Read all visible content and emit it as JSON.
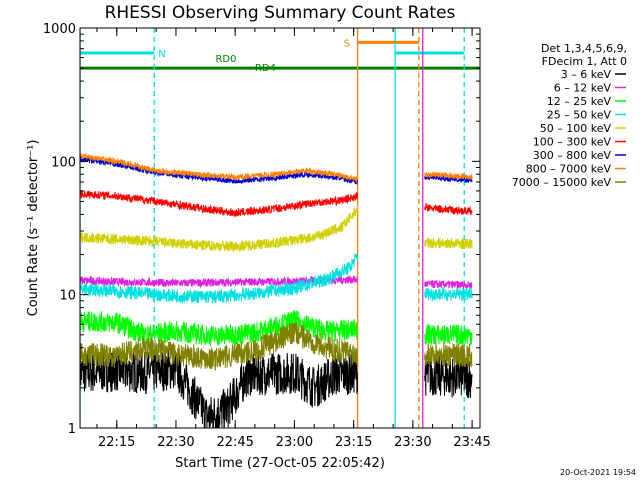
{
  "chart_data": {
    "type": "line",
    "title": "RHESSI Observing Summary Count Rates",
    "xlabel": "Start Time (27-Oct-05 22:05:42)",
    "ylabel": "Count Rate (s⁻¹ detector⁻¹)",
    "yscale": "log",
    "ylim": [
      1,
      1000
    ],
    "xlim": [
      "22:05:42",
      "23:47:00"
    ],
    "x_ticks": [
      "22:15",
      "22:30",
      "22:45",
      "23:00",
      "23:15",
      "23:30",
      "23:45"
    ],
    "y_ticks": [
      "1",
      "10",
      "100",
      "1000"
    ],
    "legend": {
      "position": "top-right",
      "header": [
        "Det 1,3,4,5,6,9,",
        "FDecim 1, Att 0"
      ]
    },
    "series": [
      {
        "name": "3 – 6 keV",
        "color": "#000000",
        "points": [
          [
            "22:05:42",
            2.6
          ],
          [
            "22:15",
            2.7
          ],
          [
            "22:22",
            2.6
          ],
          [
            "22:30",
            2.8
          ],
          [
            "22:38",
            1.2
          ],
          [
            "22:43",
            1.4
          ],
          [
            "22:48",
            2.5
          ],
          [
            "23:00",
            2.6
          ],
          [
            "23:05",
            2.0
          ],
          [
            "23:10",
            2.5
          ],
          [
            "23:16",
            2.6
          ]
        ],
        "segment2": [
          [
            "23:33",
            2.5
          ],
          [
            "23:45",
            2.4
          ]
        ]
      },
      {
        "name": "6 – 12 keV",
        "color": "#e020e0",
        "points": [
          [
            "22:05:42",
            12.8
          ],
          [
            "22:15",
            12.5
          ],
          [
            "22:30",
            12.2
          ],
          [
            "22:45",
            12.4
          ],
          [
            "23:00",
            12.6
          ],
          [
            "23:16",
            13.0
          ]
        ],
        "segment2": [
          [
            "23:33",
            12.0
          ],
          [
            "23:45",
            11.8
          ]
        ]
      },
      {
        "name": "12 – 25 keV",
        "color": "#00ff00",
        "points": [
          [
            "22:05:42",
            6.3
          ],
          [
            "22:15",
            6.2
          ],
          [
            "22:22",
            5.0
          ],
          [
            "22:30",
            5.3
          ],
          [
            "22:40",
            4.9
          ],
          [
            "22:50",
            5.2
          ],
          [
            "23:00",
            6.4
          ],
          [
            "23:08",
            5.3
          ],
          [
            "23:16",
            5.5
          ]
        ],
        "segment2": [
          [
            "23:33",
            5.0
          ],
          [
            "23:45",
            5.0
          ]
        ]
      },
      {
        "name": "25 – 50 keV",
        "color": "#00e0e0",
        "points": [
          [
            "22:05:42",
            11.0
          ],
          [
            "22:15",
            10.6
          ],
          [
            "22:25",
            10.0
          ],
          [
            "22:30",
            9.8
          ],
          [
            "22:40",
            9.6
          ],
          [
            "22:50",
            10.2
          ],
          [
            "23:00",
            11.2
          ],
          [
            "23:08",
            13.0
          ],
          [
            "23:14",
            16.0
          ],
          [
            "23:16",
            19.5
          ]
        ],
        "segment2": [
          [
            "23:33",
            10.2
          ],
          [
            "23:45",
            10.0
          ]
        ]
      },
      {
        "name": "50 – 100 keV",
        "color": "#d0d000",
        "points": [
          [
            "22:05:42",
            27.0
          ],
          [
            "22:15",
            26.0
          ],
          [
            "22:25",
            25.0
          ],
          [
            "22:35",
            23.5
          ],
          [
            "22:45",
            23.0
          ],
          [
            "22:55",
            24.5
          ],
          [
            "23:05",
            27.0
          ],
          [
            "23:12",
            32.0
          ],
          [
            "23:16",
            44.0
          ]
        ],
        "segment2": [
          [
            "23:33",
            24.5
          ],
          [
            "23:45",
            24.0
          ]
        ]
      },
      {
        "name": "100 – 300 keV",
        "color": "#ff0000",
        "points": [
          [
            "22:05:42",
            57.0
          ],
          [
            "22:15",
            55.0
          ],
          [
            "22:25",
            50.0
          ],
          [
            "22:35",
            45.0
          ],
          [
            "22:45",
            41.0
          ],
          [
            "22:55",
            44.0
          ],
          [
            "23:05",
            49.0
          ],
          [
            "23:12",
            51.0
          ],
          [
            "23:16",
            55.0
          ]
        ],
        "segment2": [
          [
            "23:33",
            45.0
          ],
          [
            "23:45",
            42.0
          ]
        ]
      },
      {
        "name": "300 – 800 keV",
        "color": "#0000d0",
        "points": [
          [
            "22:05:42",
            104.0
          ],
          [
            "22:15",
            95.0
          ],
          [
            "22:25",
            82.0
          ],
          [
            "22:35",
            76.0
          ],
          [
            "22:45",
            71.0
          ],
          [
            "22:55",
            75.0
          ],
          [
            "23:03",
            80.0
          ],
          [
            "23:10",
            76.0
          ],
          [
            "23:16",
            70.0
          ]
        ],
        "segment2": [
          [
            "23:33",
            76.0
          ],
          [
            "23:45",
            72.0
          ]
        ]
      },
      {
        "name": "800 – 7000 keV",
        "color": "#ff8000",
        "points": [
          [
            "22:05:42",
            110.0
          ],
          [
            "22:15",
            100.0
          ],
          [
            "22:25",
            85.0
          ],
          [
            "22:35",
            80.0
          ],
          [
            "22:45",
            76.0
          ],
          [
            "22:55",
            80.0
          ],
          [
            "23:03",
            85.0
          ],
          [
            "23:10",
            80.0
          ],
          [
            "23:16",
            73.0
          ]
        ],
        "segment2": [
          [
            "23:33",
            80.0
          ],
          [
            "23:45",
            76.0
          ]
        ]
      },
      {
        "name": "7000 – 15000 keV",
        "color": "#808000",
        "points": [
          [
            "22:05:42",
            3.6
          ],
          [
            "22:15",
            3.5
          ],
          [
            "22:22",
            4.0
          ],
          [
            "22:30",
            3.6
          ],
          [
            "22:40",
            3.3
          ],
          [
            "22:50",
            3.8
          ],
          [
            "23:00",
            5.2
          ],
          [
            "23:08",
            4.0
          ],
          [
            "23:16",
            3.6
          ]
        ],
        "segment2": [
          [
            "23:33",
            3.6
          ],
          [
            "23:45",
            3.5
          ]
        ]
      }
    ],
    "intervals": [
      {
        "label": "N",
        "color": "#00e0e0",
        "level": 650,
        "ranges": [
          [
            "22:05:42",
            "22:24:30"
          ],
          [
            "23:25:30",
            "23:43:00"
          ]
        ]
      },
      {
        "label": "S",
        "color": "#ff8000",
        "level": 780,
        "ranges": [
          [
            "23:16:00",
            "23:31:30"
          ]
        ]
      },
      {
        "label": "RD0",
        "color": "#008000",
        "level": 500,
        "ranges": [
          [
            "22:05:42",
            "23:47:00"
          ]
        ]
      },
      {
        "label": "RD4",
        "color": "#008000",
        "level": 500,
        "ranges": []
      }
    ],
    "markers": [
      {
        "time": "22:05:42",
        "color": "#00e0e0",
        "style": "solid"
      },
      {
        "time": "22:24:30",
        "color": "#00e0e0",
        "style": "dashed"
      },
      {
        "time": "23:16:00",
        "color": "#ff8000",
        "style": "solid"
      },
      {
        "time": "23:25:30",
        "color": "#00e0e0",
        "style": "solid"
      },
      {
        "time": "23:31:30",
        "color": "#ff8000",
        "style": "dashed"
      },
      {
        "time": "23:32:30",
        "color": "#e020e0",
        "style": "solid"
      },
      {
        "time": "23:43:00",
        "color": "#00e0e0",
        "style": "dashed"
      }
    ],
    "grid": false
  },
  "timestamp": "20-Oct-2021 19:54"
}
